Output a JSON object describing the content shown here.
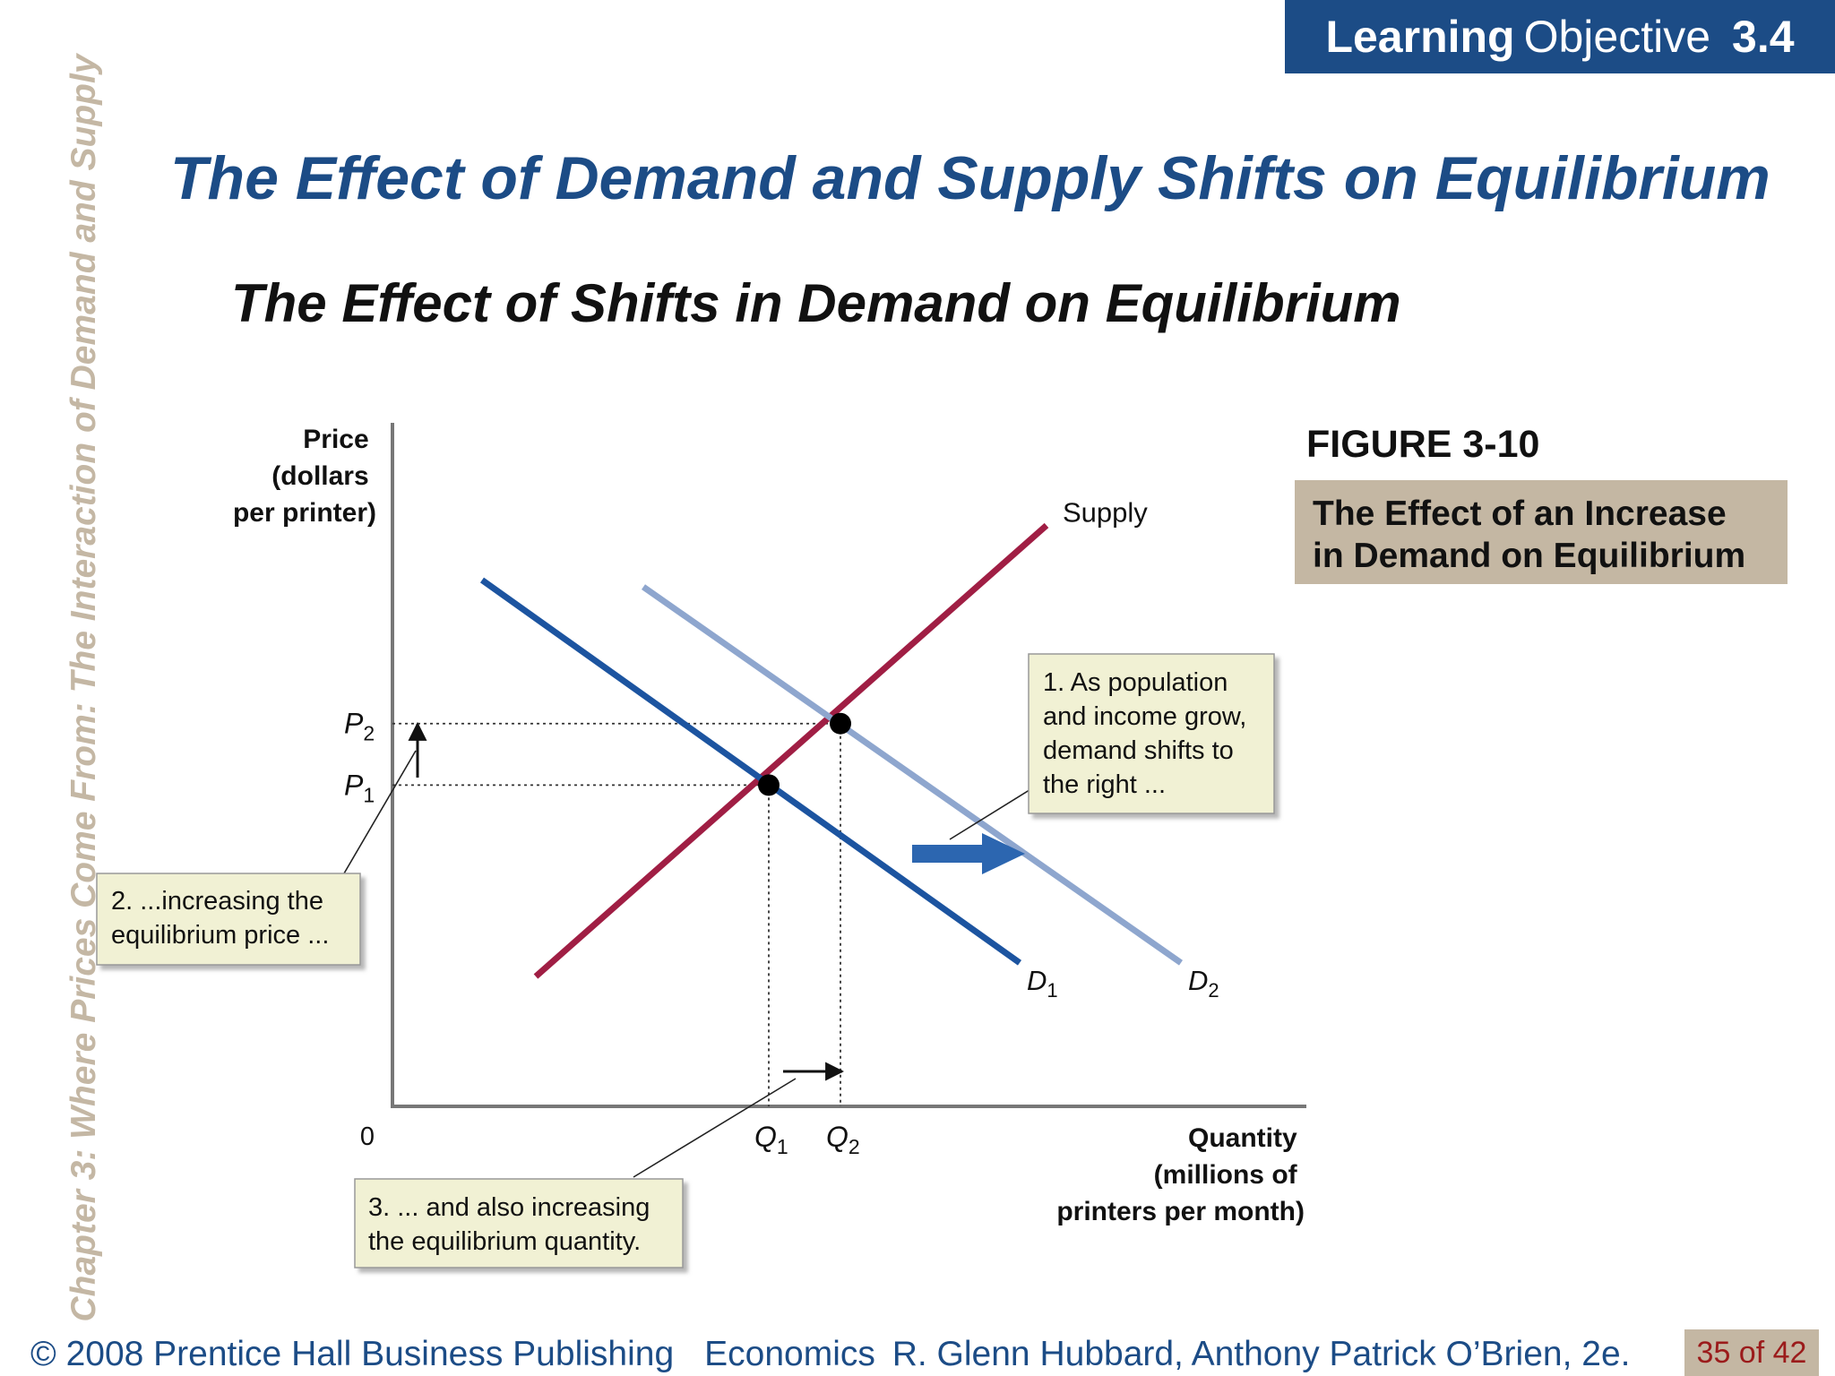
{
  "side_label": "Chapter 3: Where Prices Come From: The Interaction of Demand and Supply",
  "learning_objective": {
    "label_bold": "Learning",
    "label": "Objective",
    "number": "3.4"
  },
  "title": "The Effect of Demand and Supply Shifts on Equilibrium",
  "subtitle": "The Effect of Shifts in Demand on Equilibrium",
  "figure": {
    "label": "FIGURE 3-10",
    "caption_line1": "The Effect of an Increase",
    "caption_line2": "in Demand on Equilibrium"
  },
  "chart_data": {
    "type": "line",
    "ylabel": [
      "Price",
      "(dollars",
      "per printer)"
    ],
    "xlabel": [
      "Quantity",
      "(millions of",
      "printers per month)"
    ],
    "origin_label": "0",
    "xlim": [
      0,
      10
    ],
    "ylim": [
      0,
      10
    ],
    "grid": false,
    "series": [
      {
        "name": "Supply",
        "color": "#a01e44",
        "points": [
          [
            1.6,
            1.9
          ],
          [
            7.3,
            8.5
          ]
        ]
      },
      {
        "name": "D1",
        "color": "#1c54a0",
        "points": [
          [
            1.0,
            7.7
          ],
          [
            7.0,
            2.1
          ]
        ]
      },
      {
        "name": "D2",
        "color": "#8ea6ce",
        "points": [
          [
            2.8,
            7.6
          ],
          [
            8.8,
            2.1
          ]
        ]
      }
    ],
    "equilibria": [
      {
        "name": "E1",
        "x": 4.2,
        "y": 4.7,
        "xlabel": "Q",
        "xlabel_sub": "1",
        "ylabel": "P",
        "ylabel_sub": "1"
      },
      {
        "name": "E2",
        "x": 5.0,
        "y": 5.6,
        "xlabel": "Q",
        "xlabel_sub": "2",
        "ylabel": "P",
        "ylabel_sub": "2"
      }
    ],
    "annotations": [
      {
        "lines": [
          "1. As population",
          "and income grow,",
          "demand shifts to",
          "the right ..."
        ]
      },
      {
        "lines": [
          "2. ...increasing the",
          "equilibrium price ..."
        ]
      },
      {
        "lines": [
          "3. ... and also increasing",
          "the equilibrium quantity."
        ]
      }
    ]
  },
  "footer": {
    "copyright": "© 2008 Prentice Hall Business Publishing",
    "book": "Economics",
    "authors": "R. Glenn Hubbard, Anthony Patrick O’Brien, 2e.",
    "page": "35 of 42"
  }
}
